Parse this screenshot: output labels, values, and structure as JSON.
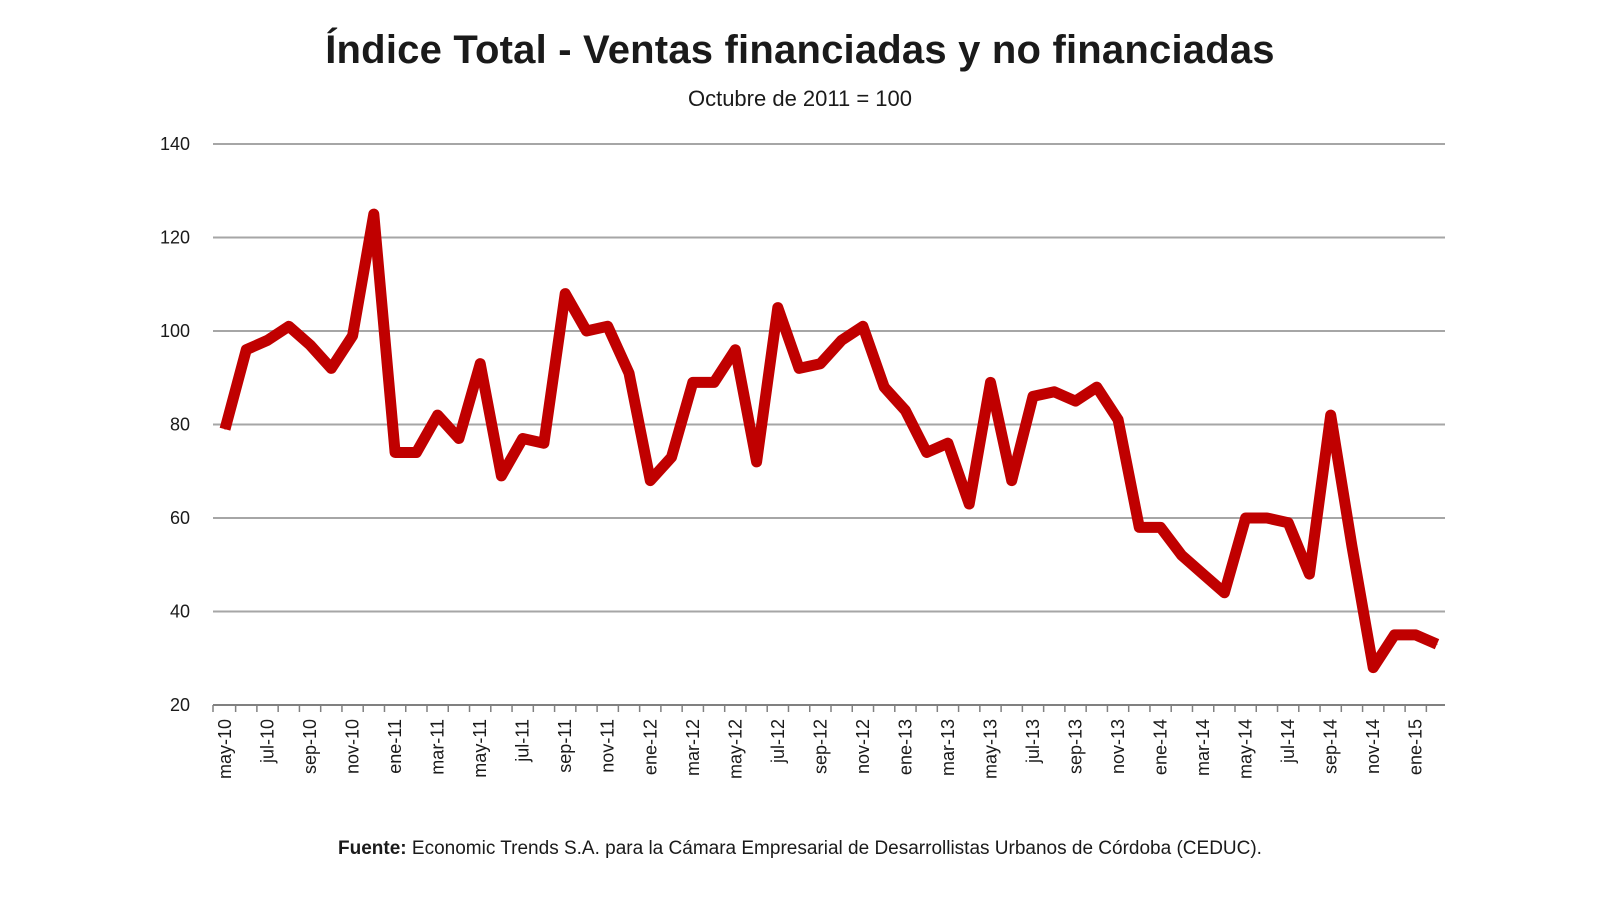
{
  "chart_data": {
    "type": "line",
    "title": "Índice Total - Ventas financiadas y no financiadas",
    "subtitle": "Octubre de 2011 = 100",
    "xlabel": "",
    "ylabel": "",
    "ylim": [
      20,
      140
    ],
    "yticks": [
      20,
      40,
      60,
      80,
      100,
      120,
      140
    ],
    "grid": true,
    "x_tick_labels": [
      "may-10",
      "jul-10",
      "sep-10",
      "nov-10",
      "ene-11",
      "mar-11",
      "may-11",
      "jul-11",
      "sep-11",
      "nov-11",
      "ene-12",
      "mar-12",
      "may-12",
      "jul-12",
      "sep-12",
      "nov-12",
      "ene-13",
      "mar-13",
      "may-13",
      "jul-13",
      "sep-13",
      "nov-13",
      "ene-14",
      "mar-14",
      "may-14",
      "jul-14",
      "sep-14",
      "nov-14",
      "ene-15"
    ],
    "series": [
      {
        "name": "Índice Total",
        "color": "#c00000",
        "x": [
          "may-10",
          "jun-10",
          "jul-10",
          "ago-10",
          "sep-10",
          "oct-10",
          "nov-10",
          "dic-10",
          "ene-11",
          "feb-11",
          "mar-11",
          "abr-11",
          "may-11",
          "jun-11",
          "jul-11",
          "ago-11",
          "sep-11",
          "oct-11",
          "nov-11",
          "dic-11",
          "ene-12",
          "feb-12",
          "mar-12",
          "abr-12",
          "may-12",
          "jun-12",
          "jul-12",
          "ago-12",
          "sep-12",
          "oct-12",
          "nov-12",
          "dic-12",
          "ene-13",
          "feb-13",
          "mar-13",
          "abr-13",
          "may-13",
          "jun-13",
          "jul-13",
          "ago-13",
          "sep-13",
          "oct-13",
          "nov-13",
          "dic-13",
          "ene-14",
          "feb-14",
          "mar-14",
          "abr-14",
          "may-14",
          "jun-14",
          "jul-14",
          "ago-14",
          "sep-14",
          "oct-14",
          "nov-14",
          "dic-14",
          "ene-15",
          "feb-15"
        ],
        "values": [
          79,
          96,
          98,
          101,
          97,
          92,
          99,
          125,
          74,
          74,
          82,
          77,
          93,
          69,
          77,
          76,
          108,
          100,
          101,
          91,
          68,
          73,
          89,
          89,
          96,
          72,
          105,
          92,
          93,
          98,
          101,
          88,
          83,
          74,
          76,
          63,
          89,
          68,
          86,
          87,
          85,
          88,
          81,
          58,
          58,
          52,
          48,
          44,
          60,
          60,
          59,
          48,
          82,
          54,
          28,
          35,
          35,
          33
        ]
      }
    ]
  },
  "source": {
    "label": "Fuente:",
    "text": "Economic Trends S.A. para la Cámara Empresarial de Desarrollistas Urbanos de Córdoba (CEDUC)."
  }
}
